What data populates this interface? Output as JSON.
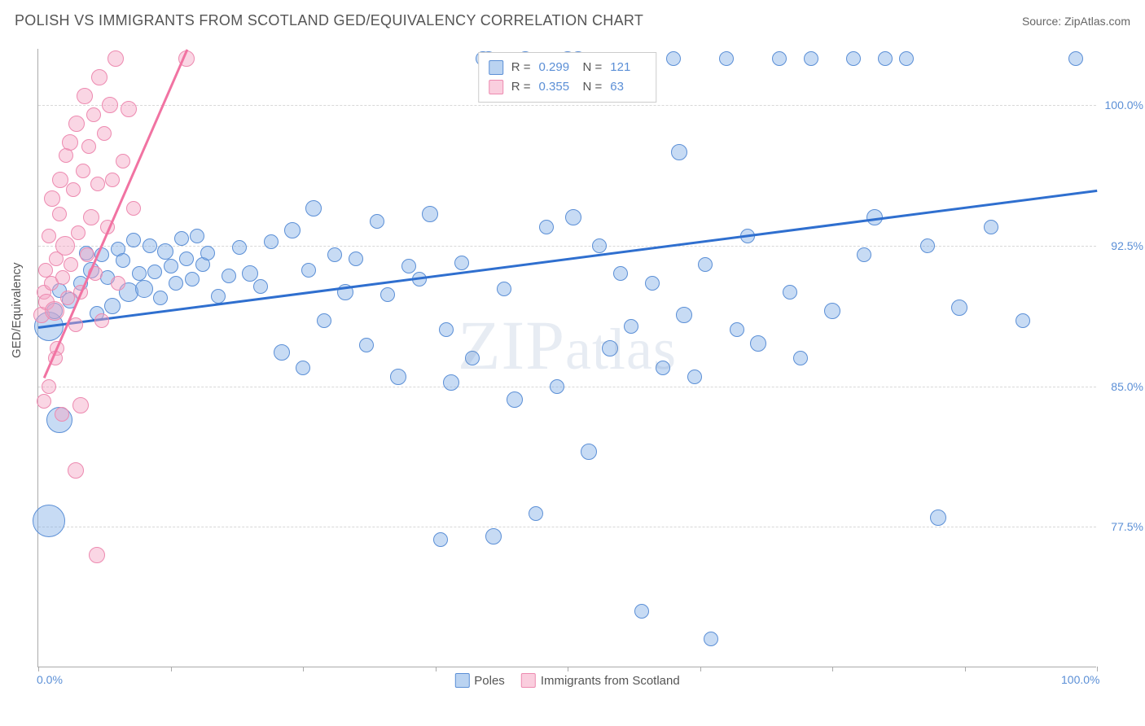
{
  "title": "POLISH VS IMMIGRANTS FROM SCOTLAND GED/EQUIVALENCY CORRELATION CHART",
  "source": "Source: ZipAtlas.com",
  "watermark": "ZIPatlas",
  "chart": {
    "type": "scatter",
    "xlim": [
      0,
      100
    ],
    "ylim": [
      70,
      103
    ],
    "x_ticks": [
      0,
      12.5,
      25,
      37.5,
      50,
      62.5,
      75,
      87.5,
      100
    ],
    "x_tick_labels": {
      "0": "0.0%",
      "100": "100.0%"
    },
    "y_gridlines": [
      77.5,
      85.0,
      92.5,
      100.0
    ],
    "y_tick_labels": [
      "77.5%",
      "85.0%",
      "92.5%",
      "100.0%"
    ],
    "y_axis_title": "GED/Equivalency",
    "background_color": "#ffffff",
    "grid_color": "#d8d8d8",
    "axis_color": "#aaaaaa",
    "series": [
      {
        "name": "Poles",
        "color_fill": "rgba(130,175,230,0.45)",
        "color_stroke": "#5b8fd6",
        "marker_radius": 9,
        "r_value": "0.299",
        "n_value": "121",
        "trend": {
          "x1": 0,
          "y1": 88.2,
          "x2": 100,
          "y2": 95.5,
          "color": "#2f6fcf"
        },
        "points": [
          [
            1,
            88.2,
            18
          ],
          [
            1,
            77.8,
            20
          ],
          [
            2,
            83.2,
            16
          ],
          [
            1.5,
            89.0,
            10
          ],
          [
            2,
            90.1,
            9
          ],
          [
            3,
            89.6,
            10
          ],
          [
            4,
            90.5,
            9
          ],
          [
            4.5,
            92.1,
            9
          ],
          [
            5,
            91.2,
            10
          ],
          [
            5.5,
            88.9,
            9
          ],
          [
            6,
            92.0,
            9
          ],
          [
            6.5,
            90.8,
            9
          ],
          [
            7,
            89.3,
            10
          ],
          [
            7.5,
            92.3,
            9
          ],
          [
            8,
            91.7,
            9
          ],
          [
            8.5,
            90.0,
            12
          ],
          [
            9,
            92.8,
            9
          ],
          [
            9.5,
            91.0,
            9
          ],
          [
            10,
            90.2,
            11
          ],
          [
            10.5,
            92.5,
            9
          ],
          [
            11,
            91.1,
            9
          ],
          [
            11.5,
            89.7,
            9
          ],
          [
            12,
            92.2,
            10
          ],
          [
            12.5,
            91.4,
            9
          ],
          [
            13,
            90.5,
            9
          ],
          [
            13.5,
            92.9,
            9
          ],
          [
            14,
            91.8,
            9
          ],
          [
            14.5,
            90.7,
            9
          ],
          [
            15,
            93.0,
            9
          ],
          [
            15.5,
            91.5,
            9
          ],
          [
            16,
            92.1,
            9
          ],
          [
            17,
            89.8,
            9
          ],
          [
            18,
            90.9,
            9
          ],
          [
            19,
            92.4,
            9
          ],
          [
            20,
            91.0,
            10
          ],
          [
            21,
            90.3,
            9
          ],
          [
            22,
            92.7,
            9
          ],
          [
            23,
            86.8,
            10
          ],
          [
            24,
            93.3,
            10
          ],
          [
            25,
            86.0,
            9
          ],
          [
            25.5,
            91.2,
            9
          ],
          [
            26,
            94.5,
            10
          ],
          [
            27,
            88.5,
            9
          ],
          [
            28,
            92.0,
            9
          ],
          [
            29,
            90.0,
            10
          ],
          [
            30,
            91.8,
            9
          ],
          [
            31,
            87.2,
            9
          ],
          [
            32,
            93.8,
            9
          ],
          [
            33,
            89.9,
            9
          ],
          [
            34,
            85.5,
            10
          ],
          [
            35,
            91.4,
            9
          ],
          [
            36,
            90.7,
            9
          ],
          [
            37,
            94.2,
            10
          ],
          [
            38,
            76.8,
            9
          ],
          [
            38.5,
            88.0,
            9
          ],
          [
            39,
            85.2,
            10
          ],
          [
            40,
            91.6,
            9
          ],
          [
            41,
            86.5,
            9
          ],
          [
            42,
            102.5,
            9
          ],
          [
            42.5,
            102.5,
            9
          ],
          [
            43,
            77.0,
            10
          ],
          [
            44,
            90.2,
            9
          ],
          [
            45,
            84.3,
            10
          ],
          [
            46,
            102.5,
            9
          ],
          [
            47,
            78.2,
            9
          ],
          [
            48,
            93.5,
            9
          ],
          [
            49,
            85.0,
            9
          ],
          [
            50,
            102.5,
            9
          ],
          [
            50.5,
            94.0,
            10
          ],
          [
            51,
            102.5,
            9
          ],
          [
            52,
            81.5,
            10
          ],
          [
            53,
            92.5,
            9
          ],
          [
            54,
            87.0,
            10
          ],
          [
            55,
            91.0,
            9
          ],
          [
            56,
            88.2,
            9
          ],
          [
            57,
            73.0,
            9
          ],
          [
            58,
            90.5,
            9
          ],
          [
            59,
            86.0,
            9
          ],
          [
            60,
            102.5,
            9
          ],
          [
            60.5,
            97.5,
            10
          ],
          [
            61,
            88.8,
            10
          ],
          [
            62,
            85.5,
            9
          ],
          [
            63,
            91.5,
            9
          ],
          [
            63.5,
            71.5,
            9
          ],
          [
            65,
            102.5,
            9
          ],
          [
            66,
            88.0,
            9
          ],
          [
            67,
            93.0,
            9
          ],
          [
            68,
            87.3,
            10
          ],
          [
            70,
            102.5,
            9
          ],
          [
            71,
            90.0,
            9
          ],
          [
            72,
            86.5,
            9
          ],
          [
            73,
            102.5,
            9
          ],
          [
            75,
            89.0,
            10
          ],
          [
            77,
            102.5,
            9
          ],
          [
            78,
            92.0,
            9
          ],
          [
            79,
            94.0,
            10
          ],
          [
            80,
            102.5,
            9
          ],
          [
            82,
            102.5,
            9
          ],
          [
            84,
            92.5,
            9
          ],
          [
            85,
            78.0,
            10
          ],
          [
            87,
            89.2,
            10
          ],
          [
            90,
            93.5,
            9
          ],
          [
            93,
            88.5,
            9
          ],
          [
            98,
            102.5,
            9
          ]
        ]
      },
      {
        "name": "Immigrants from Scotland",
        "color_fill": "rgba(245,165,195,0.45)",
        "color_stroke": "#ed8ab0",
        "marker_radius": 9,
        "r_value": "0.355",
        "n_value": "63",
        "trend": {
          "x1": 0.5,
          "y1": 85.5,
          "x2": 14,
          "y2": 103,
          "color": "#f173a2"
        },
        "points": [
          [
            0.3,
            88.8,
            10
          ],
          [
            0.5,
            90.0,
            9
          ],
          [
            0.7,
            91.2,
            9
          ],
          [
            0.8,
            89.5,
            10
          ],
          [
            1.0,
            93.0,
            9
          ],
          [
            1.2,
            90.5,
            9
          ],
          [
            1.3,
            95.0,
            10
          ],
          [
            1.5,
            89.0,
            12
          ],
          [
            1.7,
            91.8,
            9
          ],
          [
            1.8,
            87.0,
            9
          ],
          [
            2.0,
            94.2,
            9
          ],
          [
            2.1,
            96.0,
            10
          ],
          [
            2.3,
            90.8,
            9
          ],
          [
            2.5,
            92.5,
            12
          ],
          [
            2.6,
            97.3,
            9
          ],
          [
            2.8,
            89.7,
            9
          ],
          [
            3.0,
            98.0,
            10
          ],
          [
            3.1,
            91.5,
            9
          ],
          [
            3.3,
            95.5,
            9
          ],
          [
            3.5,
            88.3,
            9
          ],
          [
            3.6,
            99.0,
            10
          ],
          [
            3.8,
            93.2,
            9
          ],
          [
            4.0,
            90.0,
            9
          ],
          [
            4.2,
            96.5,
            9
          ],
          [
            4.4,
            100.5,
            10
          ],
          [
            4.6,
            92.0,
            9
          ],
          [
            4.8,
            97.8,
            9
          ],
          [
            5.0,
            94.0,
            10
          ],
          [
            5.2,
            99.5,
            9
          ],
          [
            5.4,
            91.0,
            9
          ],
          [
            5.6,
            95.8,
            9
          ],
          [
            5.8,
            101.5,
            10
          ],
          [
            6.0,
            88.5,
            9
          ],
          [
            6.2,
            98.5,
            9
          ],
          [
            6.5,
            93.5,
            9
          ],
          [
            6.8,
            100.0,
            10
          ],
          [
            7.0,
            96.0,
            9
          ],
          [
            7.3,
            102.5,
            10
          ],
          [
            7.5,
            90.5,
            9
          ],
          [
            8.0,
            97.0,
            9
          ],
          [
            8.5,
            99.8,
            10
          ],
          [
            9.0,
            94.5,
            9
          ],
          [
            4.0,
            84.0,
            10
          ],
          [
            3.5,
            80.5,
            10
          ],
          [
            5.5,
            76.0,
            10
          ],
          [
            2.2,
            83.5,
            9
          ],
          [
            14.0,
            102.5,
            10
          ],
          [
            1.0,
            85.0,
            9
          ],
          [
            1.6,
            86.5,
            9
          ],
          [
            0.5,
            84.2,
            9
          ]
        ]
      }
    ],
    "legend_top": {
      "rows": [
        {
          "swatch": "blue",
          "r": "0.299",
          "n": "121"
        },
        {
          "swatch": "pink",
          "r": "0.355",
          "n": "63"
        }
      ]
    },
    "legend_bottom": [
      {
        "swatch": "blue",
        "label": "Poles"
      },
      {
        "swatch": "pink",
        "label": "Immigrants from Scotland"
      }
    ]
  }
}
